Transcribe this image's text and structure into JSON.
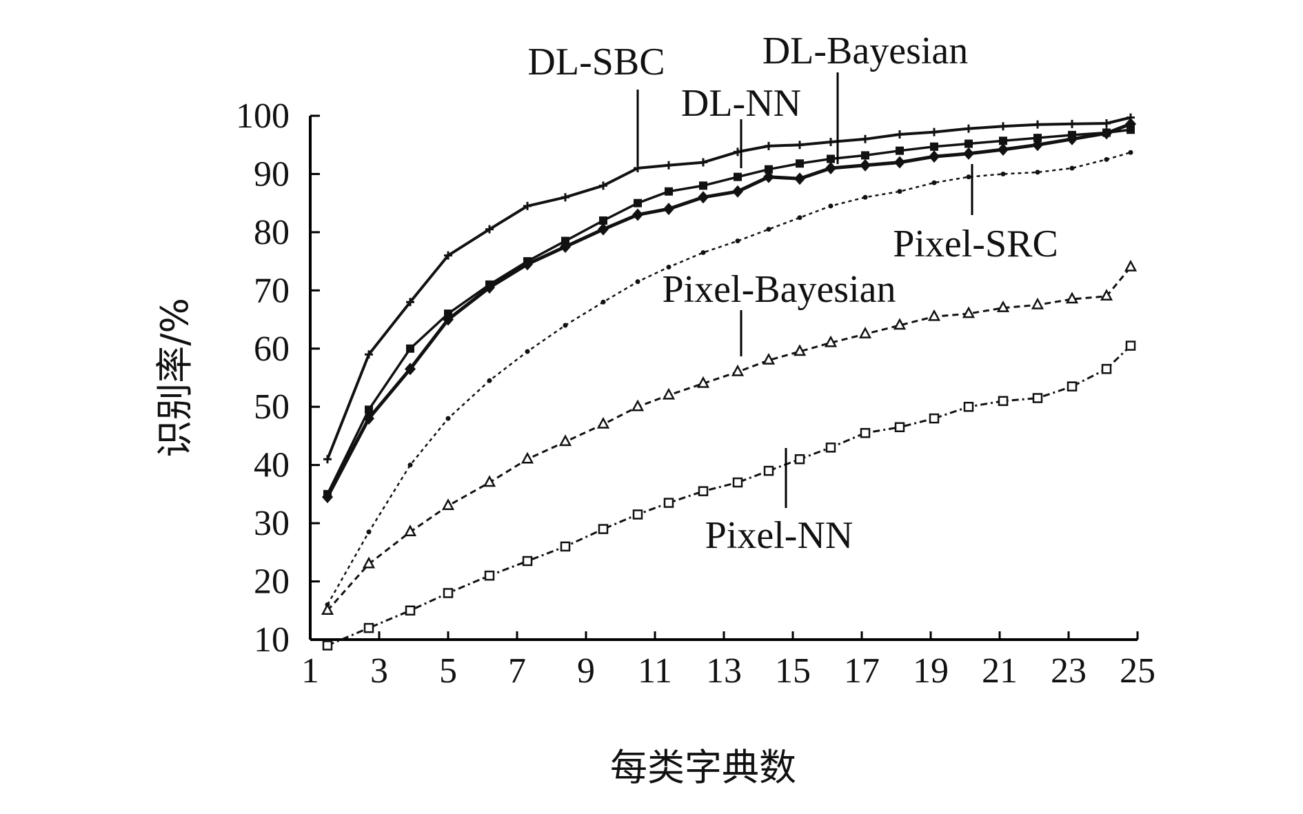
{
  "chart_data": {
    "type": "line",
    "title": "",
    "xlabel": "每类字典数",
    "ylabel": "识别率/%",
    "xlim": [
      1,
      25
    ],
    "ylim": [
      10,
      100
    ],
    "xticks": [
      1,
      3,
      5,
      7,
      9,
      11,
      13,
      15,
      17,
      19,
      21,
      23,
      25
    ],
    "yticks": [
      10,
      20,
      30,
      40,
      50,
      60,
      70,
      80,
      90,
      100
    ],
    "grid": false,
    "legend": "inline-annotations",
    "x": [
      1.5,
      2.7,
      3.9,
      5.0,
      6.2,
      7.3,
      8.4,
      9.5,
      10.5,
      11.4,
      12.4,
      13.4,
      14.3,
      15.2,
      16.1,
      17.1,
      18.1,
      19.1,
      20.1,
      21.1,
      22.1,
      23.1,
      24.1,
      24.8
    ],
    "series": [
      {
        "name": "DL-SBC",
        "values": [
          41,
          59,
          68,
          76,
          80.5,
          84.5,
          86,
          88,
          91,
          91.5,
          92,
          93.8,
          94.8,
          95,
          95.5,
          96,
          96.8,
          97.2,
          97.8,
          98.2,
          98.5,
          98.6,
          98.7,
          99.7
        ]
      },
      {
        "name": "DL-NN",
        "values": [
          35,
          49.5,
          60,
          66,
          71,
          75,
          78.5,
          82,
          85,
          87,
          88,
          89.5,
          90.8,
          91.8,
          92.6,
          93.2,
          94,
          94.7,
          95.2,
          95.7,
          96.2,
          96.7,
          97.1,
          97.6
        ]
      },
      {
        "name": "DL-Bayesian",
        "values": [
          34.5,
          48,
          56.5,
          65,
          70.5,
          74.5,
          77.5,
          80.5,
          83,
          84,
          86,
          87,
          89.5,
          89.2,
          91,
          91.5,
          92,
          93,
          93.5,
          94.2,
          95,
          96,
          97,
          98.6
        ]
      },
      {
        "name": "Pixel-SRC",
        "values": [
          16,
          28.5,
          40,
          48,
          54.5,
          59.5,
          64,
          68,
          71.5,
          74,
          76.5,
          78.5,
          80.5,
          82.5,
          84.5,
          86,
          87,
          88.5,
          89.5,
          90,
          90.3,
          91,
          92.5,
          93.7
        ]
      },
      {
        "name": "Pixel-Bayesian",
        "values": [
          15,
          23,
          28.5,
          33,
          37,
          41,
          44,
          47,
          50,
          52,
          54,
          56,
          58,
          59.5,
          61,
          62.5,
          64,
          65.5,
          66,
          67,
          67.5,
          68.5,
          69,
          74
        ]
      },
      {
        "name": "Pixel-NN",
        "values": [
          9,
          12,
          15,
          18,
          21,
          23.5,
          26,
          29,
          31.5,
          33.5,
          35.5,
          37,
          39,
          41,
          43,
          45.5,
          46.5,
          48,
          50,
          51,
          51.5,
          53.5,
          56.5,
          60.5
        ]
      }
    ]
  }
}
